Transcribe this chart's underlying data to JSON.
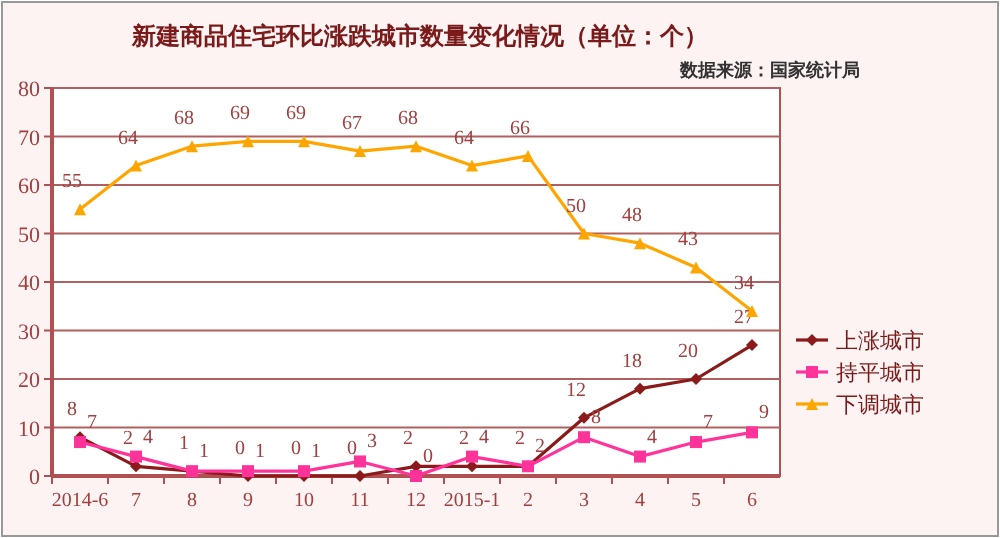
{
  "chart_data": {
    "type": "line",
    "title": "新建商品住宅环比涨跌城市数量变化情况（单位：个）",
    "annotations": [
      "数据来源：国家统计局"
    ],
    "categories": [
      "2014-6",
      "7",
      "8",
      "9",
      "10",
      "11",
      "12",
      "2015-1",
      "2",
      "3",
      "4",
      "5",
      "6"
    ],
    "series": [
      {
        "name": "上涨城市",
        "color": "#8b1a1a",
        "marker": "diamond",
        "values": [
          8,
          2,
          1,
          0,
          0,
          0,
          2,
          2,
          2,
          12,
          18,
          20,
          27
        ]
      },
      {
        "name": "持平城市",
        "color": "#ff3399",
        "marker": "square",
        "values": [
          7,
          4,
          1,
          1,
          1,
          3,
          0,
          4,
          2,
          8,
          4,
          7,
          9
        ]
      },
      {
        "name": "下调城市",
        "color": "#ffa500",
        "marker": "triangle",
        "values": [
          55,
          64,
          68,
          69,
          69,
          67,
          68,
          64,
          66,
          50,
          48,
          43,
          34
        ]
      }
    ],
    "ylim": [
      0,
      80
    ],
    "yticks": [
      0,
      10,
      20,
      30,
      40,
      50,
      60,
      70,
      80
    ],
    "grid": "y",
    "legend": "right",
    "data_labels": true
  }
}
